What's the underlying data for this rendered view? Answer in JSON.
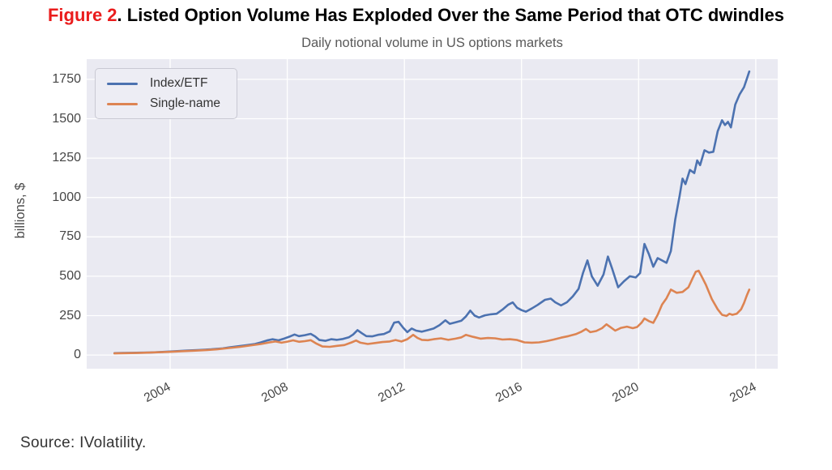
{
  "title": {
    "prefix": "Figure 2",
    "rest": ". Listed Option Volume Has Exploded Over the Same Period that OTC dwindles"
  },
  "subtitle": "Daily notional volume in US options markets",
  "source": "Source: IVolatility.",
  "colors": {
    "figure_number_red": "#ea1c1c",
    "plot_background": "#EAEAF2",
    "gridline": "#ffffff",
    "index_etf_blue": "#4C72B0",
    "single_name_orange": "#DD8452",
    "tick_text": "#464646",
    "subtitle_text": "#595959"
  },
  "chart_data": {
    "type": "line",
    "title": "Daily notional volume in US options markets",
    "xlabel": "",
    "ylabel": "billions, $",
    "grid": true,
    "legend_position": "upper left",
    "xlim": [
      2001.15,
      2024.75
    ],
    "ylim": [
      -87,
      1878
    ],
    "xticks": [
      2004,
      2008,
      2012,
      2016,
      2020,
      2024
    ],
    "yticks": [
      0,
      250,
      500,
      750,
      1000,
      1250,
      1500,
      1750
    ],
    "series": [
      {
        "name": "Index/ETF",
        "color": "#4C72B0",
        "points": [
          [
            2002.1,
            12
          ],
          [
            2002.4,
            13
          ],
          [
            2002.7,
            14
          ],
          [
            2003.0,
            15
          ],
          [
            2003.3,
            16
          ],
          [
            2003.6,
            18
          ],
          [
            2004.0,
            22
          ],
          [
            2004.3,
            25
          ],
          [
            2004.6,
            28
          ],
          [
            2005.0,
            32
          ],
          [
            2005.4,
            36
          ],
          [
            2005.8,
            42
          ],
          [
            2006.0,
            48
          ],
          [
            2006.3,
            55
          ],
          [
            2006.6,
            62
          ],
          [
            2006.9,
            70
          ],
          [
            2007.1,
            80
          ],
          [
            2007.3,
            92
          ],
          [
            2007.5,
            100
          ],
          [
            2007.7,
            93
          ],
          [
            2007.9,
            105
          ],
          [
            2008.1,
            118
          ],
          [
            2008.25,
            130
          ],
          [
            2008.4,
            120
          ],
          [
            2008.6,
            126
          ],
          [
            2008.8,
            134
          ],
          [
            2008.95,
            118
          ],
          [
            2009.1,
            95
          ],
          [
            2009.3,
            90
          ],
          [
            2009.5,
            100
          ],
          [
            2009.7,
            96
          ],
          [
            2009.9,
            102
          ],
          [
            2010.1,
            112
          ],
          [
            2010.25,
            130
          ],
          [
            2010.4,
            158
          ],
          [
            2010.55,
            138
          ],
          [
            2010.7,
            120
          ],
          [
            2010.9,
            118
          ],
          [
            2011.1,
            128
          ],
          [
            2011.3,
            133
          ],
          [
            2011.5,
            150
          ],
          [
            2011.65,
            205
          ],
          [
            2011.8,
            211
          ],
          [
            2011.95,
            175
          ],
          [
            2012.1,
            145
          ],
          [
            2012.25,
            168
          ],
          [
            2012.4,
            155
          ],
          [
            2012.6,
            148
          ],
          [
            2012.8,
            158
          ],
          [
            2013.0,
            168
          ],
          [
            2013.2,
            190
          ],
          [
            2013.4,
            220
          ],
          [
            2013.55,
            198
          ],
          [
            2013.75,
            208
          ],
          [
            2013.95,
            218
          ],
          [
            2014.1,
            245
          ],
          [
            2014.25,
            282
          ],
          [
            2014.4,
            250
          ],
          [
            2014.55,
            238
          ],
          [
            2014.75,
            252
          ],
          [
            2014.95,
            258
          ],
          [
            2015.15,
            262
          ],
          [
            2015.35,
            288
          ],
          [
            2015.55,
            320
          ],
          [
            2015.7,
            334
          ],
          [
            2015.85,
            300
          ],
          [
            2016.0,
            285
          ],
          [
            2016.15,
            275
          ],
          [
            2016.35,
            295
          ],
          [
            2016.55,
            318
          ],
          [
            2016.8,
            350
          ],
          [
            2017.0,
            358
          ],
          [
            2017.15,
            335
          ],
          [
            2017.35,
            315
          ],
          [
            2017.55,
            335
          ],
          [
            2017.75,
            372
          ],
          [
            2017.95,
            420
          ],
          [
            2018.1,
            520
          ],
          [
            2018.25,
            600
          ],
          [
            2018.4,
            500
          ],
          [
            2018.6,
            440
          ],
          [
            2018.8,
            510
          ],
          [
            2018.95,
            625
          ],
          [
            2019.1,
            545
          ],
          [
            2019.3,
            430
          ],
          [
            2019.5,
            468
          ],
          [
            2019.7,
            500
          ],
          [
            2019.9,
            492
          ],
          [
            2020.05,
            520
          ],
          [
            2020.2,
            705
          ],
          [
            2020.35,
            640
          ],
          [
            2020.5,
            560
          ],
          [
            2020.65,
            615
          ],
          [
            2020.8,
            600
          ],
          [
            2020.95,
            585
          ],
          [
            2021.1,
            660
          ],
          [
            2021.25,
            860
          ],
          [
            2021.4,
            1010
          ],
          [
            2021.5,
            1120
          ],
          [
            2021.6,
            1085
          ],
          [
            2021.75,
            1175
          ],
          [
            2021.9,
            1155
          ],
          [
            2022.0,
            1235
          ],
          [
            2022.1,
            1205
          ],
          [
            2022.25,
            1300
          ],
          [
            2022.4,
            1285
          ],
          [
            2022.55,
            1290
          ],
          [
            2022.7,
            1420
          ],
          [
            2022.85,
            1490
          ],
          [
            2022.95,
            1460
          ],
          [
            2023.05,
            1480
          ],
          [
            2023.15,
            1445
          ],
          [
            2023.3,
            1590
          ],
          [
            2023.45,
            1655
          ],
          [
            2023.6,
            1700
          ],
          [
            2023.7,
            1755
          ],
          [
            2023.78,
            1800
          ]
        ]
      },
      {
        "name": "Single-name",
        "color": "#DD8452",
        "points": [
          [
            2002.1,
            10
          ],
          [
            2002.5,
            12
          ],
          [
            2003.0,
            14
          ],
          [
            2003.5,
            17
          ],
          [
            2004.0,
            20
          ],
          [
            2004.4,
            24
          ],
          [
            2004.8,
            27
          ],
          [
            2005.2,
            31
          ],
          [
            2005.6,
            36
          ],
          [
            2006.0,
            44
          ],
          [
            2006.4,
            52
          ],
          [
            2006.8,
            62
          ],
          [
            2007.1,
            70
          ],
          [
            2007.4,
            80
          ],
          [
            2007.6,
            86
          ],
          [
            2007.8,
            78
          ],
          [
            2008.0,
            85
          ],
          [
            2008.2,
            93
          ],
          [
            2008.4,
            84
          ],
          [
            2008.6,
            88
          ],
          [
            2008.8,
            94
          ],
          [
            2009.0,
            72
          ],
          [
            2009.2,
            54
          ],
          [
            2009.45,
            52
          ],
          [
            2009.7,
            58
          ],
          [
            2009.95,
            63
          ],
          [
            2010.2,
            80
          ],
          [
            2010.35,
            92
          ],
          [
            2010.5,
            78
          ],
          [
            2010.75,
            70
          ],
          [
            2011.0,
            76
          ],
          [
            2011.25,
            82
          ],
          [
            2011.5,
            86
          ],
          [
            2011.7,
            95
          ],
          [
            2011.9,
            86
          ],
          [
            2012.1,
            100
          ],
          [
            2012.3,
            128
          ],
          [
            2012.45,
            108
          ],
          [
            2012.6,
            96
          ],
          [
            2012.8,
            94
          ],
          [
            2013.0,
            100
          ],
          [
            2013.25,
            106
          ],
          [
            2013.5,
            96
          ],
          [
            2013.75,
            104
          ],
          [
            2013.95,
            112
          ],
          [
            2014.1,
            128
          ],
          [
            2014.35,
            115
          ],
          [
            2014.6,
            104
          ],
          [
            2014.85,
            108
          ],
          [
            2015.1,
            106
          ],
          [
            2015.35,
            98
          ],
          [
            2015.6,
            100
          ],
          [
            2015.85,
            95
          ],
          [
            2016.1,
            80
          ],
          [
            2016.35,
            78
          ],
          [
            2016.6,
            80
          ],
          [
            2016.85,
            88
          ],
          [
            2017.1,
            98
          ],
          [
            2017.35,
            110
          ],
          [
            2017.6,
            120
          ],
          [
            2017.85,
            132
          ],
          [
            2018.05,
            148
          ],
          [
            2018.2,
            165
          ],
          [
            2018.35,
            145
          ],
          [
            2018.55,
            152
          ],
          [
            2018.75,
            170
          ],
          [
            2018.9,
            195
          ],
          [
            2019.05,
            175
          ],
          [
            2019.2,
            155
          ],
          [
            2019.4,
            172
          ],
          [
            2019.6,
            180
          ],
          [
            2019.8,
            170
          ],
          [
            2019.95,
            178
          ],
          [
            2020.1,
            205
          ],
          [
            2020.2,
            232
          ],
          [
            2020.35,
            215
          ],
          [
            2020.5,
            204
          ],
          [
            2020.65,
            255
          ],
          [
            2020.8,
            320
          ],
          [
            2020.95,
            360
          ],
          [
            2021.1,
            415
          ],
          [
            2021.3,
            395
          ],
          [
            2021.5,
            400
          ],
          [
            2021.7,
            430
          ],
          [
            2021.85,
            490
          ],
          [
            2021.95,
            528
          ],
          [
            2022.05,
            535
          ],
          [
            2022.15,
            500
          ],
          [
            2022.3,
            445
          ],
          [
            2022.5,
            355
          ],
          [
            2022.7,
            290
          ],
          [
            2022.85,
            255
          ],
          [
            2023.0,
            248
          ],
          [
            2023.1,
            262
          ],
          [
            2023.2,
            255
          ],
          [
            2023.35,
            262
          ],
          [
            2023.5,
            290
          ],
          [
            2023.6,
            330
          ],
          [
            2023.7,
            380
          ],
          [
            2023.78,
            415
          ]
        ]
      }
    ]
  }
}
